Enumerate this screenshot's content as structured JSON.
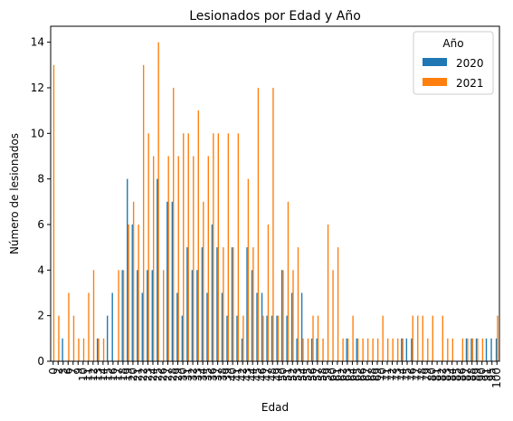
{
  "chart_data": {
    "type": "bar",
    "title": "Lesionados por Edad y Año",
    "xlabel": "Edad",
    "ylabel": "Número de lesionados",
    "ylim": [
      0,
      14.7
    ],
    "yticks": [
      0,
      2,
      4,
      6,
      8,
      10,
      12,
      14
    ],
    "grid": false,
    "legend": {
      "title": "Año",
      "placement": "top-right"
    },
    "categories": [
      "0",
      "2",
      "3",
      "6",
      "7",
      "9",
      "10",
      "11",
      "12",
      "13",
      "14",
      "15",
      "16",
      "17",
      "18",
      "19",
      "20",
      "21",
      "22",
      "23",
      "24",
      "25",
      "26",
      "27",
      "28",
      "29",
      "30",
      "31",
      "32",
      "33",
      "34",
      "35",
      "36",
      "37",
      "38",
      "39",
      "40",
      "41",
      "42",
      "43",
      "44",
      "45",
      "46",
      "47",
      "48",
      "49",
      "50",
      "51",
      "52",
      "53",
      "54",
      "55",
      "56",
      "57",
      "58",
      "59",
      "60",
      "61",
      "62",
      "63",
      "64",
      "65",
      "66",
      "67",
      "68",
      "69",
      "70",
      "71",
      "72",
      "73",
      "74",
      "75",
      "76",
      "77",
      "78",
      "79",
      "80",
      "81",
      "82",
      "83",
      "84",
      "85",
      "86",
      "87",
      "88",
      "89",
      "90",
      "91",
      "95",
      "100"
    ],
    "series": [
      {
        "name": "2020",
        "color": "#1f77b4",
        "values": [
          0,
          0,
          1,
          0,
          0,
          0,
          0,
          0,
          0,
          1,
          0,
          2,
          3,
          0,
          4,
          8,
          6,
          4,
          3,
          4,
          4,
          8,
          0,
          7,
          7,
          3,
          2,
          5,
          4,
          4,
          5,
          3,
          6,
          5,
          3,
          2,
          5,
          2,
          1,
          5,
          4,
          3,
          3,
          2,
          2,
          2,
          4,
          2,
          3,
          1,
          3,
          0,
          1,
          1,
          0,
          0,
          0,
          0,
          0,
          1,
          0,
          1,
          0,
          0,
          0,
          0,
          0,
          0,
          0,
          0,
          1,
          1,
          1,
          0,
          0,
          0,
          0,
          0,
          0,
          0,
          0,
          0,
          0,
          1,
          1,
          1,
          0,
          1,
          1,
          1
        ]
      },
      {
        "name": "2021",
        "color": "#ff7f0e",
        "values": [
          13,
          2,
          0,
          3,
          2,
          1,
          1,
          3,
          4,
          1,
          1,
          0,
          0,
          4,
          4,
          6,
          7,
          6,
          13,
          10,
          9,
          14,
          4,
          9,
          12,
          9,
          10,
          10,
          9,
          11,
          7,
          9,
          10,
          10,
          5,
          10,
          5,
          10,
          2,
          8,
          5,
          12,
          2,
          6,
          12,
          2,
          4,
          7,
          4,
          5,
          1,
          1,
          2,
          2,
          1,
          6,
          4,
          5,
          1,
          1,
          2,
          1,
          1,
          1,
          1,
          1,
          2,
          1,
          1,
          1,
          1,
          0,
          2,
          2,
          2,
          1,
          2,
          0,
          2,
          1,
          1,
          0,
          1,
          1,
          1,
          1,
          1,
          0,
          0,
          2
        ]
      }
    ]
  }
}
